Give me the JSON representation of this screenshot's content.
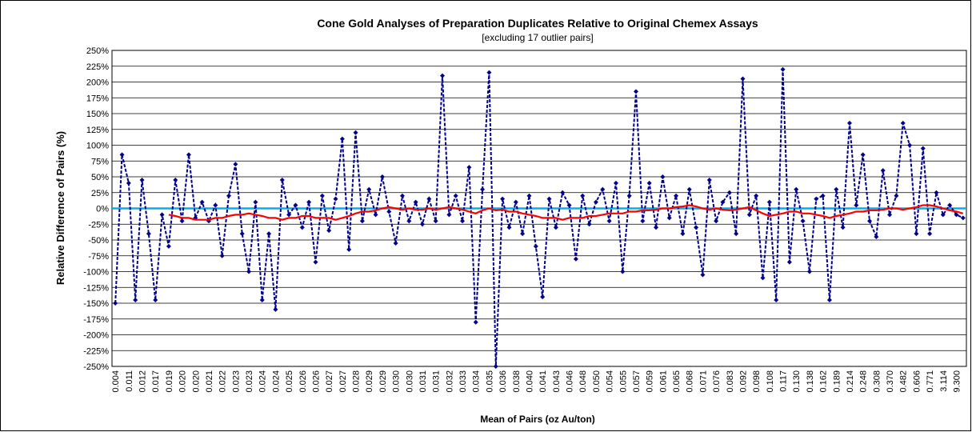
{
  "chart_data": {
    "type": "line",
    "title": "Cone Gold Analyses  of Preparation Duplicates Relative to Original Chemex Assays",
    "subtitle": "[excluding 17 outlier pairs]",
    "x_label": "Mean of Pairs (oz Au/ton)",
    "y_label": "Relative Difference of Pairs (%)",
    "categories": [
      "0.004",
      null,
      "0.011",
      null,
      "0.012",
      null,
      "0.017",
      null,
      "0.019",
      null,
      "0.020",
      null,
      "0.020",
      null,
      "0.021",
      null,
      "0.022",
      null,
      "0.023",
      null,
      "0.023",
      null,
      "0.024",
      null,
      "0.024",
      null,
      "0.025",
      null,
      "0.026",
      null,
      "0.026",
      null,
      "0.027",
      null,
      "0.027",
      null,
      "0.028",
      null,
      "0.029",
      null,
      "0.029",
      null,
      "0.030",
      null,
      "0.030",
      null,
      "0.031",
      null,
      "0.031",
      null,
      "0.032",
      null,
      "0.033",
      null,
      "0.034",
      null,
      "0.035",
      null,
      "0.036",
      null,
      "0.038",
      null,
      "0.040",
      null,
      "0.041",
      null,
      "0.043",
      null,
      "0.046",
      null,
      "0.048",
      null,
      "0.050",
      null,
      "0.054",
      null,
      "0.055",
      null,
      "0.057",
      null,
      "0.059",
      null,
      "0.061",
      null,
      "0.065",
      null,
      "0.068",
      null,
      "0.071",
      null,
      "0.076",
      null,
      "0.083",
      null,
      "0.092",
      null,
      "0.098",
      null,
      "0.108",
      null,
      "0.117",
      null,
      "0.130",
      null,
      "0.138",
      null,
      "0.162",
      null,
      "0.189",
      null,
      "0.214",
      null,
      "0.248",
      null,
      "0.308",
      null,
      "0.370",
      null,
      "0.482",
      null,
      "0.606",
      null,
      "0.771",
      null,
      "3.114",
      null,
      "9.300",
      null
    ],
    "series": [
      {
        "color": "#00008b",
        "style": "dashed-markers",
        "values": [
          -150,
          85,
          40,
          -145,
          45,
          -40,
          -145,
          -10,
          -60,
          45,
          -20,
          85,
          -15,
          10,
          -20,
          5,
          -75,
          20,
          70,
          -40,
          -100,
          10,
          -145,
          -40,
          -160,
          45,
          -10,
          5,
          -30,
          10,
          -85,
          20,
          -35,
          15,
          110,
          -65,
          120,
          -20,
          30,
          -10,
          50,
          -5,
          -55,
          20,
          -20,
          10,
          -25,
          15,
          -20,
          210,
          -10,
          20,
          -20,
          65,
          -180,
          30,
          215,
          -250,
          15,
          -30,
          10,
          -40,
          20,
          -60,
          -140,
          15,
          -30,
          25,
          5,
          -80,
          20,
          -25,
          10,
          30,
          -20,
          40,
          -100,
          20,
          185,
          -20,
          40,
          -30,
          50,
          -15,
          20,
          -40,
          30,
          -30,
          -105,
          45,
          -20,
          10,
          25,
          -40,
          205,
          -10,
          20,
          -110,
          10,
          -145,
          220,
          -85,
          30,
          -20,
          -100,
          15,
          20,
          -145,
          30,
          -30,
          135,
          5,
          85,
          -20,
          -45,
          60,
          -10,
          20,
          135,
          100,
          -40,
          95,
          -40,
          25,
          -10,
          5,
          -10,
          -15
        ]
      },
      {
        "color": "#ff0000",
        "style": "solid",
        "values": [
          null,
          null,
          null,
          null,
          null,
          null,
          null,
          null,
          -10,
          -12,
          -15,
          -15,
          -18,
          -18,
          -18,
          -15,
          -15,
          -12,
          -10,
          -10,
          -8,
          -10,
          -12,
          -15,
          -15,
          -18,
          -15,
          -15,
          -12,
          -12,
          -15,
          -15,
          -15,
          -18,
          -15,
          -12,
          -8,
          -5,
          -5,
          -3,
          0,
          2,
          0,
          -2,
          0,
          -2,
          -2,
          0,
          -2,
          0,
          2,
          0,
          -2,
          -5,
          -8,
          -3,
          0,
          -3,
          -2,
          -5,
          -5,
          -8,
          -10,
          -12,
          -15,
          -15,
          -15,
          -18,
          -15,
          -15,
          -15,
          -12,
          -12,
          -10,
          -8,
          -8,
          -8,
          -5,
          -5,
          -3,
          -3,
          -2,
          0,
          0,
          2,
          3,
          5,
          3,
          0,
          -2,
          0,
          -2,
          -3,
          -2,
          0,
          2,
          -3,
          -8,
          -12,
          -10,
          -8,
          -5,
          -5,
          -8,
          -8,
          -10,
          -12,
          -15,
          -12,
          -10,
          -8,
          -5,
          -5,
          -3,
          -3,
          -2,
          0,
          0,
          -2,
          0,
          2,
          5,
          5,
          3,
          0,
          -3,
          -5,
          -8
        ]
      }
    ],
    "reference_line": {
      "value": 0,
      "color": "#00b0f0"
    },
    "ylim": [
      -250,
      250
    ],
    "yticks": [
      {
        "value": -250,
        "label": "-250%"
      },
      {
        "value": -225,
        "label": "-225%"
      },
      {
        "value": -200,
        "label": "-200%"
      },
      {
        "value": -175,
        "label": "-175%"
      },
      {
        "value": -150,
        "label": "-150%"
      },
      {
        "value": -125,
        "label": "-125%"
      },
      {
        "value": -100,
        "label": "-100%"
      },
      {
        "value": -75,
        "label": "-75%"
      },
      {
        "value": -50,
        "label": "-50%"
      },
      {
        "value": -25,
        "label": "-25%"
      },
      {
        "value": 0,
        "label": "0%"
      },
      {
        "value": 25,
        "label": "25%"
      },
      {
        "value": 50,
        "label": "50%"
      },
      {
        "value": 75,
        "label": "75%"
      },
      {
        "value": 100,
        "label": "100%"
      },
      {
        "value": 125,
        "label": "125%"
      },
      {
        "value": 150,
        "label": "150%"
      },
      {
        "value": 175,
        "label": "175%"
      },
      {
        "value": 200,
        "label": "200%"
      },
      {
        "value": 225,
        "label": "225%"
      },
      {
        "value": 250,
        "label": "250%"
      }
    ],
    "grid": true
  }
}
